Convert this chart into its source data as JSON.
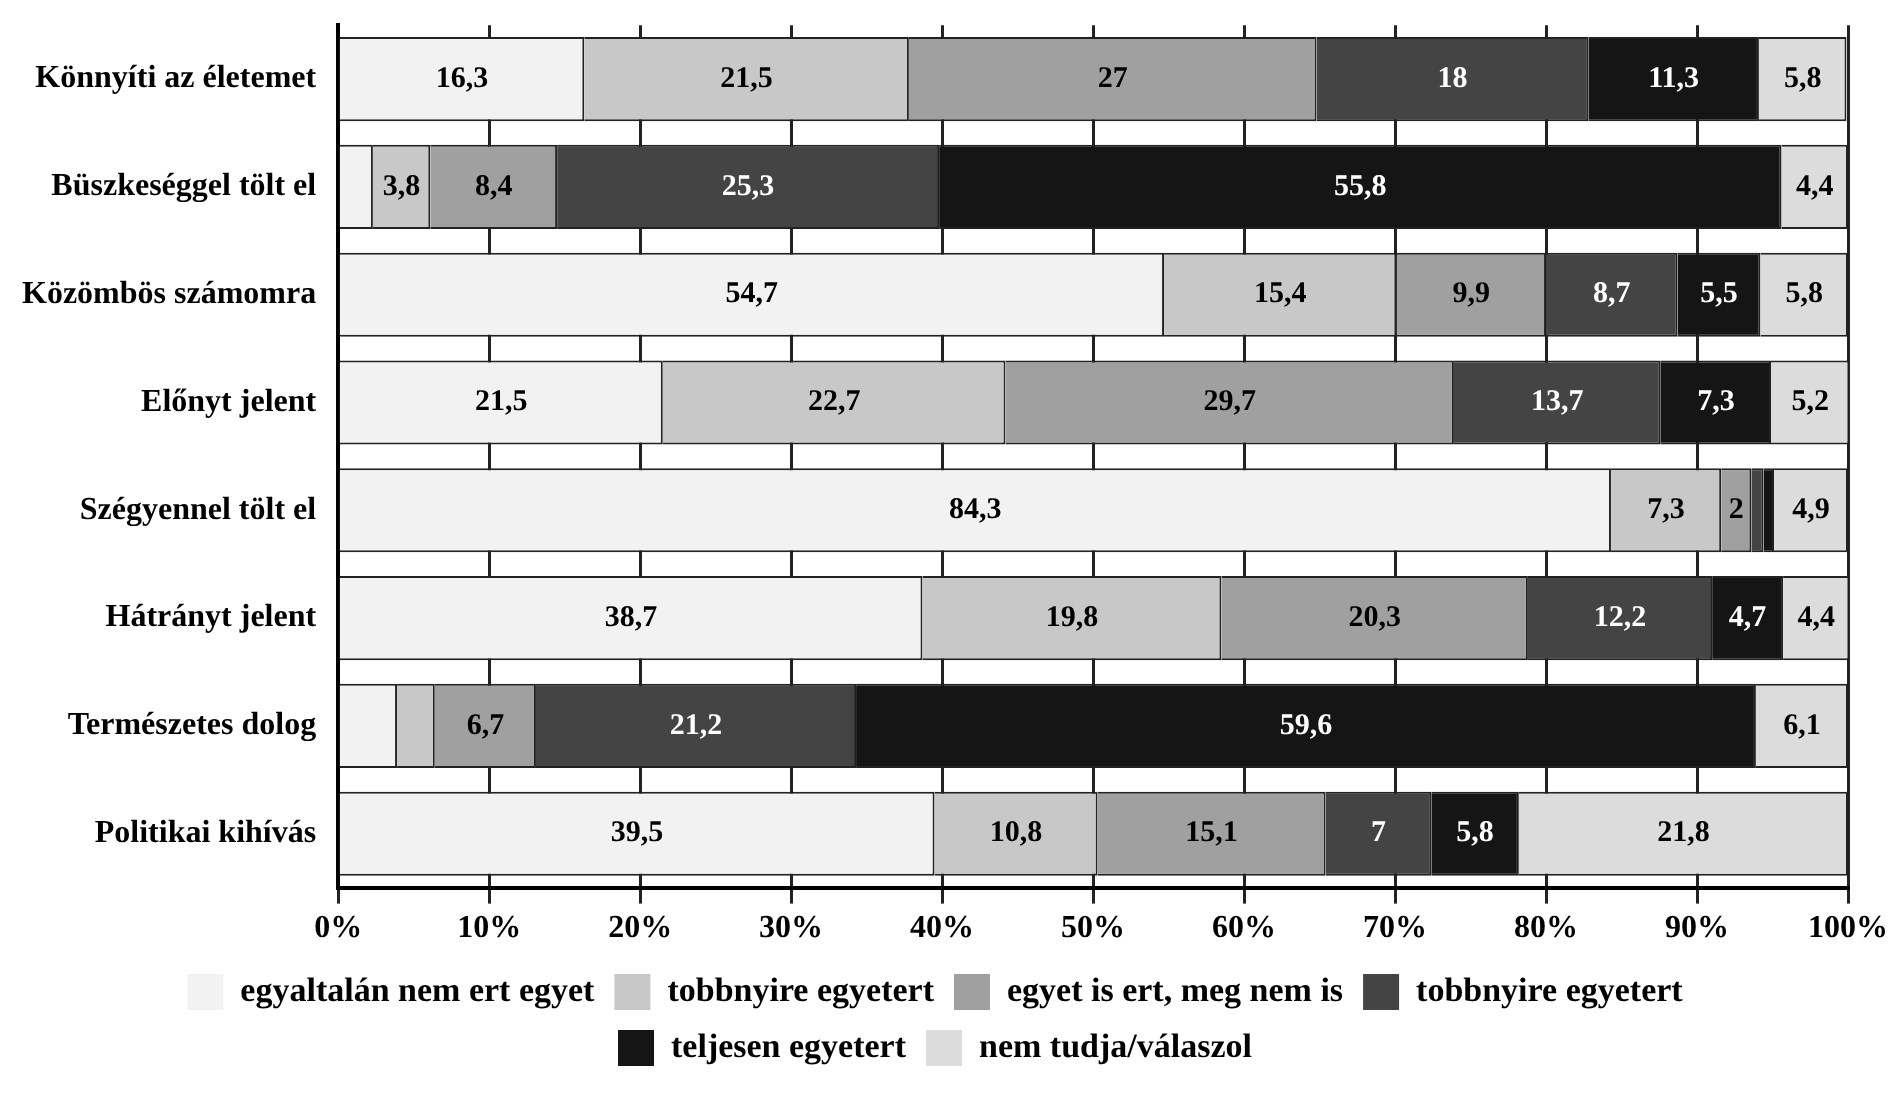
{
  "chart_data": {
    "type": "bar",
    "orientation": "horizontal",
    "stacked": true,
    "categories": [
      "Könnyíti az életemet",
      "Büszkeséggel tölt el",
      "Közömbös számomra",
      "Előnyt jelent",
      "Szégyennel tölt el",
      "Hátrányt jelent",
      "Természetes dolog",
      "Politikai kihívás"
    ],
    "series": [
      {
        "name": "egyaltalán nem ert egyet",
        "color": "#f2f2f2",
        "values": [
          16.3,
          2.3,
          54.7,
          21.5,
          84.3,
          38.7,
          3.9,
          39.5
        ],
        "value_labels": [
          "16,3",
          null,
          "54,7",
          "21,5",
          "84,3",
          "38,7",
          null,
          "39,5"
        ]
      },
      {
        "name": "tobbnyire egyetert",
        "color": "#c8c8c8",
        "values": [
          21.5,
          3.8,
          15.4,
          22.7,
          7.3,
          19.8,
          2.5,
          10.8
        ],
        "value_labels": [
          "21,5",
          "3,8",
          "15,4",
          "22,7",
          "7,3",
          "19,8",
          null,
          "10,8"
        ]
      },
      {
        "name": "egyet is ert, meg nem is",
        "color": "#a0a0a0",
        "values": [
          27,
          8.4,
          9.9,
          29.7,
          2,
          20.3,
          6.7,
          15.1
        ],
        "value_labels": [
          "27",
          "8,4",
          "9,9",
          "29,7",
          "2",
          "20,3",
          "6,7",
          "15,1"
        ]
      },
      {
        "name": "tobbnyire egyetert",
        "color": "#444444",
        "values": [
          18,
          25.3,
          8.7,
          13.7,
          0.8,
          12.2,
          21.2,
          7
        ],
        "value_labels": [
          "18",
          "25,3",
          "8,7",
          "13,7",
          null,
          "12,2",
          "21,2",
          "7"
        ]
      },
      {
        "name": "teljesen egyetert",
        "color": "#151515",
        "values": [
          11.3,
          55.8,
          5.5,
          7.3,
          0.7,
          4.7,
          59.6,
          5.8
        ],
        "value_labels": [
          "11,3",
          "55,8",
          "5,5",
          "7,3",
          null,
          "4,7",
          "59,6",
          "5,8"
        ]
      },
      {
        "name": "nem tudja/válaszol",
        "color": "#dcdcdc",
        "values": [
          5.8,
          4.4,
          5.8,
          5.2,
          4.9,
          4.4,
          6.1,
          21.8
        ],
        "value_labels": [
          "5,8",
          "4,4",
          "5,8",
          "5,2",
          "4,9",
          "4,4",
          "6,1",
          "21,8"
        ]
      }
    ],
    "xlim": [
      0,
      100
    ],
    "xticks": [
      {
        "value": 0,
        "label": "0%"
      },
      {
        "value": 10,
        "label": "10%"
      },
      {
        "value": 20,
        "label": "20%"
      },
      {
        "value": 30,
        "label": "30%"
      },
      {
        "value": 40,
        "label": "40%"
      },
      {
        "value": 50,
        "label": "50%"
      },
      {
        "value": 60,
        "label": "60%"
      },
      {
        "value": 70,
        "label": "70%"
      },
      {
        "value": 80,
        "label": "80%"
      },
      {
        "value": 90,
        "label": "90%"
      },
      {
        "value": 100,
        "label": "100%"
      }
    ],
    "grid": "x",
    "legend": "bottom"
  }
}
